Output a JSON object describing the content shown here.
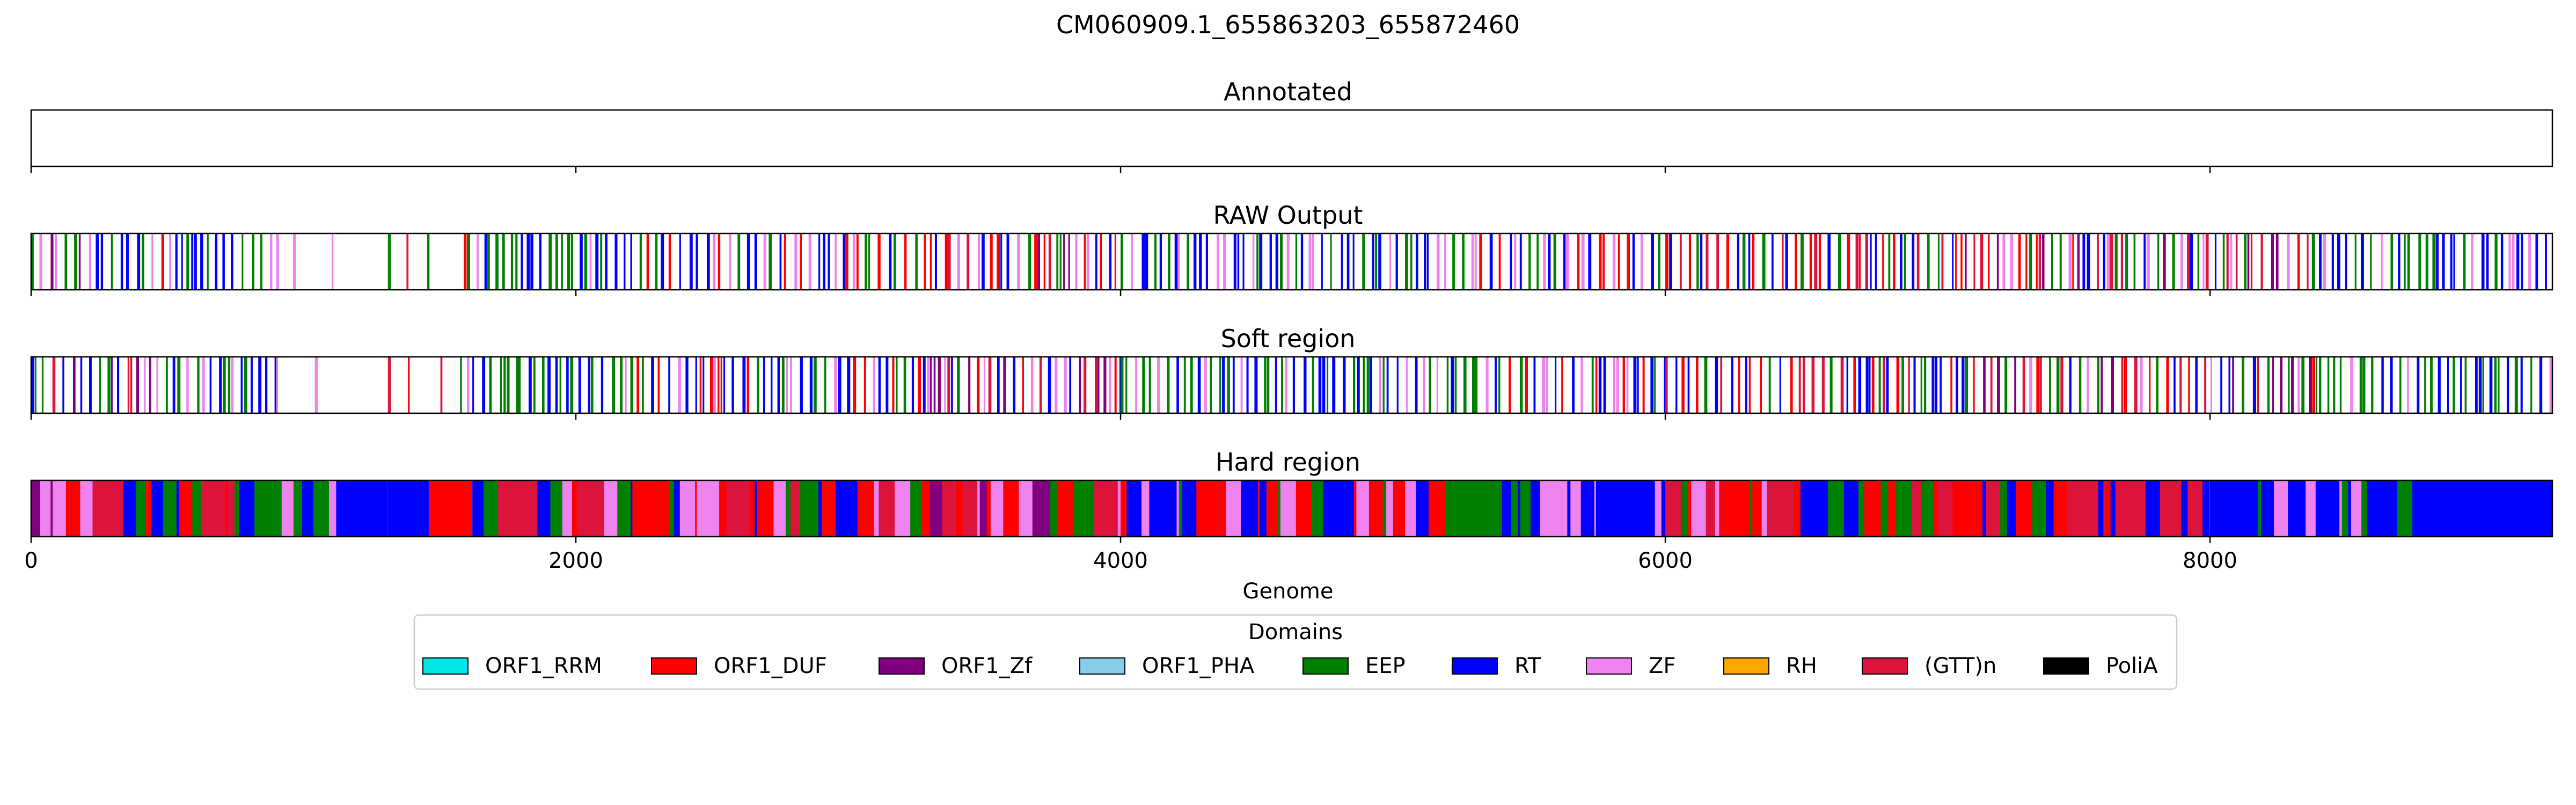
{
  "figure": {
    "title": "CM060909.1_655863203_655872460"
  },
  "chart_data": {
    "type": "track-bands",
    "title": "CM060909.1_655863203_655872460",
    "xlabel": "Genome",
    "xlim": [
      0,
      9257
    ],
    "xticks": [
      0,
      2000,
      4000,
      6000,
      8000
    ],
    "xtick_labels": [
      "0",
      "2000",
      "4000",
      "6000",
      "8000"
    ],
    "grid": false,
    "legend_placement": "bottom-center",
    "legend": {
      "title": "Domains",
      "entries": [
        {
          "name": "ORF1_RRM",
          "color": "#00e5e5"
        },
        {
          "name": "ORF1_DUF",
          "color": "#ff0000"
        },
        {
          "name": "ORF1_Zf",
          "color": "#800080"
        },
        {
          "name": "ORF1_PHA",
          "color": "#87ceeb"
        },
        {
          "name": "EEP",
          "color": "#008000"
        },
        {
          "name": "RT",
          "color": "#0000ff"
        },
        {
          "name": "ZF",
          "color": "#ee82ee"
        },
        {
          "name": "RH",
          "color": "#ffa500"
        },
        {
          "name": "(GTT)n",
          "color": "#dc143c"
        },
        {
          "name": "PoliA",
          "color": "#000000"
        }
      ]
    },
    "panels": [
      {
        "title": "Annotated",
        "style": "lines",
        "segments": []
      },
      {
        "title": "RAW Output",
        "style": "lines",
        "segments": [
          {
            "start": 0,
            "end": 570,
            "domain": "mix-red-green-blue"
          },
          {
            "start": 570,
            "end": 900,
            "domain": "mix-green-blue"
          },
          {
            "start": 900,
            "end": 1130,
            "domain": "sparse-blue-violet"
          },
          {
            "start": 1310,
            "end": 1600,
            "domain": "sparse-red-green"
          },
          {
            "start": 1600,
            "end": 2200,
            "domain": "mix-green-blue"
          },
          {
            "start": 2200,
            "end": 3300,
            "domain": "mix-blue-green"
          },
          {
            "start": 3300,
            "end": 4000,
            "domain": "mix-red-green-blue"
          },
          {
            "start": 4000,
            "end": 5300,
            "domain": "mix-green-blue"
          },
          {
            "start": 5300,
            "end": 6000,
            "domain": "mix-blue-green"
          },
          {
            "start": 6000,
            "end": 7100,
            "domain": "mix-red-blue-green"
          },
          {
            "start": 7100,
            "end": 8400,
            "domain": "mix-red-green-blue"
          },
          {
            "start": 8400,
            "end": 9257,
            "domain": "mix-green-blue"
          }
        ]
      },
      {
        "title": "Soft region",
        "style": "lines",
        "segments": [
          {
            "start": 0,
            "end": 570,
            "domain": "mix-red-green-blue"
          },
          {
            "start": 570,
            "end": 900,
            "domain": "mix-green-blue"
          },
          {
            "start": 900,
            "end": 1130,
            "domain": "sparse-blue-violet"
          },
          {
            "start": 1310,
            "end": 1600,
            "domain": "sparse-red-green"
          },
          {
            "start": 1600,
            "end": 2200,
            "domain": "mix-green-blue"
          },
          {
            "start": 2200,
            "end": 3300,
            "domain": "mix-blue-green"
          },
          {
            "start": 3300,
            "end": 4000,
            "domain": "mix-red-green-blue"
          },
          {
            "start": 4000,
            "end": 5300,
            "domain": "mix-green-blue"
          },
          {
            "start": 5300,
            "end": 6000,
            "domain": "mix-blue-green"
          },
          {
            "start": 6000,
            "end": 7100,
            "domain": "mix-red-blue-green"
          },
          {
            "start": 7100,
            "end": 8400,
            "domain": "mix-red-green-blue"
          },
          {
            "start": 8400,
            "end": 9257,
            "domain": "mix-green-blue"
          }
        ]
      },
      {
        "title": "Hard region",
        "style": "filled",
        "segments": [
          {
            "start": 0,
            "end": 820,
            "domain": "mix-red-green-blue"
          },
          {
            "start": 820,
            "end": 920,
            "domain": "EEP"
          },
          {
            "start": 920,
            "end": 1120,
            "domain": "mix-violet-green"
          },
          {
            "start": 1120,
            "end": 1310,
            "domain": "RT"
          },
          {
            "start": 1310,
            "end": 1460,
            "domain": "RT"
          },
          {
            "start": 1460,
            "end": 1620,
            "domain": "ORF1_DUF"
          },
          {
            "start": 1620,
            "end": 2300,
            "domain": "mix-green-blue-red"
          },
          {
            "start": 2300,
            "end": 3300,
            "domain": "mix-red-green-violet"
          },
          {
            "start": 3300,
            "end": 4000,
            "domain": "mix-red-green-blue"
          },
          {
            "start": 4000,
            "end": 5200,
            "domain": "mix-blue-green"
          },
          {
            "start": 5200,
            "end": 5400,
            "domain": "EEP"
          },
          {
            "start": 5400,
            "end": 6000,
            "domain": "mix-blue-violet"
          },
          {
            "start": 6000,
            "end": 7000,
            "domain": "mix-green-blue-red"
          },
          {
            "start": 7000,
            "end": 8000,
            "domain": "mix-green-red-blue"
          },
          {
            "start": 8000,
            "end": 8800,
            "domain": "mix-green-violet-blue"
          },
          {
            "start": 8800,
            "end": 9257,
            "domain": "RT"
          }
        ]
      }
    ]
  }
}
